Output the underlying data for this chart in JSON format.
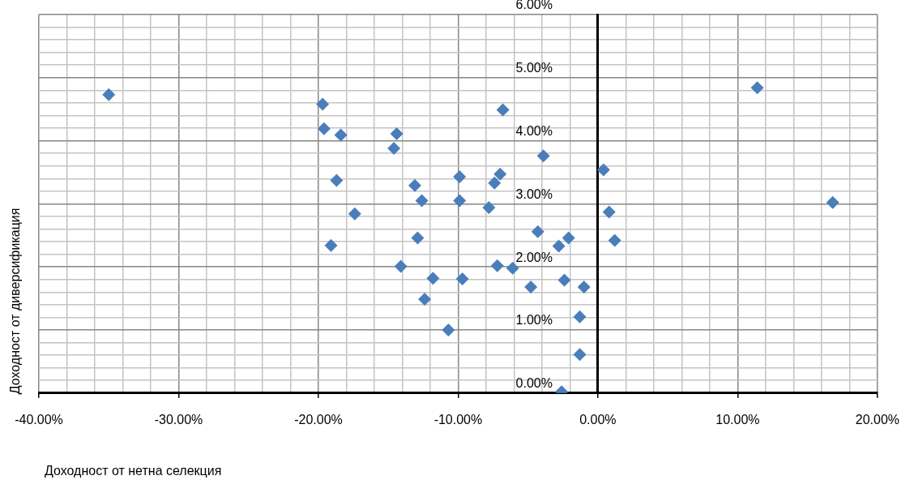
{
  "chart_data": {
    "type": "scatter",
    "xlabel": "Доходност от нетна селекция",
    "ylabel": "Доходност от диверсификация",
    "x": [
      -35.0,
      -19.7,
      -19.6,
      -18.4,
      -18.7,
      -17.4,
      -19.1,
      -14.4,
      -14.6,
      -13.1,
      -12.6,
      -12.9,
      -14.1,
      -11.8,
      -12.4,
      -10.7,
      -9.9,
      -9.9,
      -9.7,
      -7.8,
      -7.4,
      -7.0,
      -6.8,
      -7.2,
      -6.1,
      -3.9,
      -4.3,
      -4.8,
      -2.8,
      -2.1,
      -2.4,
      -1.0,
      -1.3,
      -1.3,
      -2.6,
      0.4,
      0.8,
      1.2,
      11.4,
      16.8
    ],
    "series": [
      {
        "color": "#4a7ebb",
        "values": [
          4.73,
          4.58,
          4.19,
          4.09,
          3.37,
          2.84,
          2.34,
          4.11,
          3.88,
          3.29,
          3.05,
          2.46,
          2.01,
          1.82,
          1.49,
          1.0,
          3.43,
          3.05,
          1.81,
          2.94,
          3.33,
          3.47,
          4.49,
          2.02,
          1.98,
          3.76,
          2.56,
          1.68,
          2.33,
          2.46,
          1.79,
          1.68,
          1.21,
          0.61,
          0.02,
          3.54,
          2.87,
          2.42,
          4.84,
          3.02
        ]
      }
    ],
    "xlim": [
      -40,
      20
    ],
    "xticks": [
      {
        "value": -40,
        "label": "-40.00%"
      },
      {
        "value": -38,
        "label": null
      },
      {
        "value": -36,
        "label": null
      },
      {
        "value": -34,
        "label": null
      },
      {
        "value": -32,
        "label": null
      },
      {
        "value": -30,
        "label": "-30.00%"
      },
      {
        "value": -28,
        "label": null
      },
      {
        "value": -26,
        "label": null
      },
      {
        "value": -24,
        "label": null
      },
      {
        "value": -22,
        "label": null
      },
      {
        "value": -20,
        "label": "-20.00%"
      },
      {
        "value": -18,
        "label": null
      },
      {
        "value": -16,
        "label": null
      },
      {
        "value": -14,
        "label": null
      },
      {
        "value": -12,
        "label": null
      },
      {
        "value": -10,
        "label": "-10.00%"
      },
      {
        "value": -8,
        "label": null
      },
      {
        "value": -6,
        "label": null
      },
      {
        "value": -4,
        "label": null
      },
      {
        "value": -2,
        "label": null
      },
      {
        "value": 0,
        "label": "0.00%"
      },
      {
        "value": 2,
        "label": null
      },
      {
        "value": 4,
        "label": null
      },
      {
        "value": 6,
        "label": null
      },
      {
        "value": 8,
        "label": null
      },
      {
        "value": 10,
        "label": "10.00%"
      },
      {
        "value": 12,
        "label": null
      },
      {
        "value": 14,
        "label": null
      },
      {
        "value": 16,
        "label": null
      },
      {
        "value": 18,
        "label": null
      },
      {
        "value": 20,
        "label": "20.00%"
      }
    ],
    "ylim": [
      0,
      6
    ],
    "yticks": [
      {
        "value": 0,
        "label": "0.00%"
      },
      {
        "value": 0.2,
        "label": null
      },
      {
        "value": 0.4,
        "label": null
      },
      {
        "value": 0.6,
        "label": null
      },
      {
        "value": 0.8,
        "label": null
      },
      {
        "value": 1,
        "label": "1.00%"
      },
      {
        "value": 1.2,
        "label": null
      },
      {
        "value": 1.4,
        "label": null
      },
      {
        "value": 1.6,
        "label": null
      },
      {
        "value": 1.8,
        "label": null
      },
      {
        "value": 2,
        "label": "2.00%"
      },
      {
        "value": 2.2,
        "label": null
      },
      {
        "value": 2.4,
        "label": null
      },
      {
        "value": 2.6,
        "label": null
      },
      {
        "value": 2.8,
        "label": null
      },
      {
        "value": 3,
        "label": "3.00%"
      },
      {
        "value": 3.2,
        "label": null
      },
      {
        "value": 3.4,
        "label": null
      },
      {
        "value": 3.6,
        "label": null
      },
      {
        "value": 3.8,
        "label": null
      },
      {
        "value": 4,
        "label": "4.00%"
      },
      {
        "value": 4.2,
        "label": null
      },
      {
        "value": 4.4,
        "label": null
      },
      {
        "value": 4.6,
        "label": null
      },
      {
        "value": 4.8,
        "label": null
      },
      {
        "value": 5,
        "label": "5.00%"
      },
      {
        "value": 5.2,
        "label": null
      },
      {
        "value": 5.4,
        "label": null
      },
      {
        "value": 5.6,
        "label": null
      },
      {
        "value": 5.8,
        "label": null
      },
      {
        "value": 6,
        "label": "6.00%"
      }
    ],
    "grid": true,
    "legend": false,
    "marker": "diamond"
  }
}
